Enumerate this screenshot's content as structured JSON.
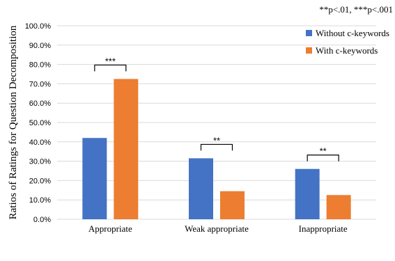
{
  "chart_data": {
    "type": "bar",
    "note": "**p<.01, ***p<.001",
    "ylabel": "Ratios of Ratings for Question Decomposition",
    "ylim": [
      0,
      100
    ],
    "yticks": [
      "0.0%",
      "10.0%",
      "20.0%",
      "30.0%",
      "40.0%",
      "50.0%",
      "60.0%",
      "70.0%",
      "80.0%",
      "90.0%",
      "100.0%"
    ],
    "categories": [
      "Appropriate",
      "Weak appropriate",
      "Inappropriate"
    ],
    "series": [
      {
        "name": "Without c-keywords",
        "color": "#4472C4",
        "values": [
          42,
          31.5,
          26
        ]
      },
      {
        "name": "With c-keywords",
        "color": "#ED7D31",
        "values": [
          72.5,
          14.5,
          12.5
        ]
      }
    ],
    "significance": [
      "***",
      "**",
      "**"
    ],
    "grid": true,
    "legend_position": "top-right"
  }
}
